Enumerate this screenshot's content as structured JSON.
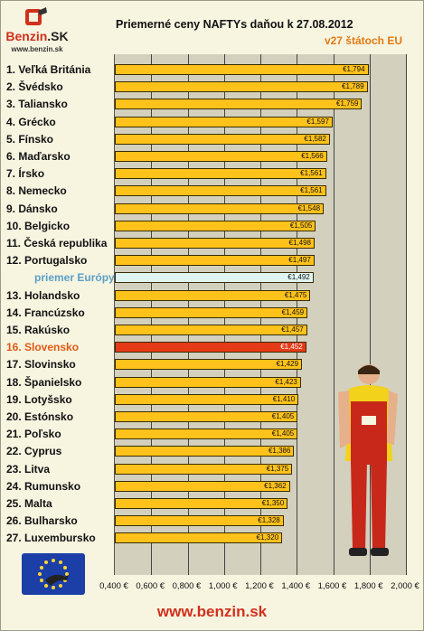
{
  "brand": {
    "logo_part1": "Benzin",
    "logo_part2": ".SK",
    "logo_url": "www.benzin.sk"
  },
  "title": "Priemerné ceny NAFTYs daňou k 27.08.2012",
  "subtitle": "v27 štátoch EU",
  "footer": "www.benzin.sk",
  "colors": {
    "bar": "#ffc21a",
    "europe_bar": "#dff5f2",
    "slovakia_bar": "#e53a17",
    "plot_bg": "#d3d0bd",
    "title_accent": "#e27a12",
    "footer": "#d0301c"
  },
  "icons": {
    "logo": "fuel-nozzle-icon",
    "eu_flag": "eu-flag-icon",
    "mascot": "mechanic-mascot"
  },
  "chart_data": {
    "type": "bar",
    "orientation": "horizontal",
    "title": "Priemerné ceny NAFTYs daňou k 27.08.2012",
    "subtitle": "v27 štátoch EU",
    "categories": [
      "1. Veľká Británia",
      "2. Švédsko",
      "3. Taliansko",
      "4. Grécko",
      "5. Fínsko",
      "6. Maďarsko",
      "7. Írsko",
      "8. Nemecko",
      "9. Dánsko",
      "10. Belgicko",
      "11. Česká republika",
      "12. Portugalsko",
      "priemer Európy",
      "13. Holandsko",
      "14. Francúzsko",
      "15. Rakúsko",
      "16. Slovensko",
      "17. Slovinsko",
      "18. Španielsko",
      "19. Lotyšsko",
      "20. Estónsko",
      "21. Poľsko",
      "22. Cyprus",
      "23. Litva",
      "24. Rumunsko",
      "25. Malta",
      "26. Bulharsko",
      "27. Luxembursko"
    ],
    "values": [
      1.794,
      1.789,
      1.759,
      1.597,
      1.582,
      1.566,
      1.561,
      1.561,
      1.548,
      1.505,
      1.498,
      1.497,
      1.492,
      1.475,
      1.459,
      1.457,
      1.452,
      1.429,
      1.423,
      1.41,
      1.405,
      1.405,
      1.386,
      1.375,
      1.362,
      1.35,
      1.328,
      1.32
    ],
    "value_labels": [
      "€1,794",
      "€1,789",
      "€1,759",
      "€1,597",
      "€1,582",
      "€1,566",
      "€1,561",
      "€1,561",
      "€1,548",
      "€1,505",
      "€1,498",
      "€1,497",
      "€1,492",
      "€1,475",
      "€1,459",
      "€1,457",
      "€1,452",
      "€1,429",
      "€1,423",
      "€1,410",
      "€1,405",
      "€1,405",
      "€1,386",
      "€1,375",
      "€1,362",
      "€1,350",
      "€1,328",
      "€1,320"
    ],
    "highlight": {
      "europe_average": "priemer Európy",
      "slovakia": "16. Slovensko"
    },
    "xlim": [
      0.4,
      2.0
    ],
    "xticks": [
      "0,400 €",
      "0,600 €",
      "0,800 €",
      "1,000 €",
      "1,200 €",
      "1,400 €",
      "1,600 €",
      "1,800 €",
      "2,000 €"
    ],
    "grid": true,
    "legend": "none"
  }
}
